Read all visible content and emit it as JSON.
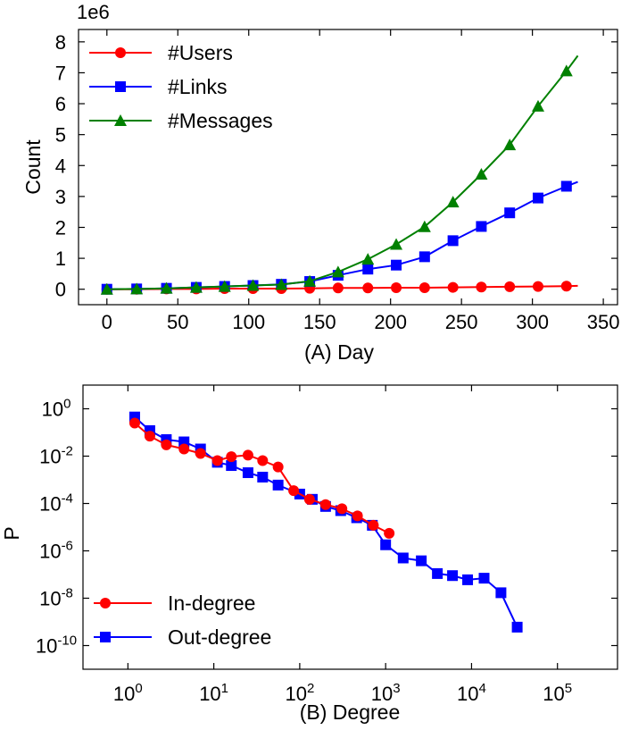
{
  "chart_data": [
    {
      "type": "line",
      "xlabel": "(A) Day",
      "ylabel": "Count",
      "y_multiplier_label": "1e6",
      "xlim": [
        -20,
        360
      ],
      "ylim": [
        -0.5,
        8.4
      ],
      "xticks": [
        0,
        50,
        100,
        150,
        200,
        250,
        300,
        350
      ],
      "yticks": [
        0,
        1,
        2,
        3,
        4,
        5,
        6,
        7,
        8
      ],
      "legend_position": "top-left",
      "grid": false,
      "series": [
        {
          "name": "#Users",
          "color": "#ff0000",
          "marker": "circle",
          "x": [
            0,
            21,
            42,
            63,
            83,
            103,
            123,
            143,
            163,
            184,
            204,
            224,
            244,
            264,
            284,
            304,
            324,
            332
          ],
          "y": [
            0,
            0,
            0.01,
            0.01,
            0.02,
            0.02,
            0.02,
            0.03,
            0.04,
            0.04,
            0.05,
            0.05,
            0.06,
            0.07,
            0.08,
            0.09,
            0.1,
            0.11
          ],
          "marker_count": 17
        },
        {
          "name": "#Links",
          "color": "#0000ff",
          "marker": "square",
          "x": [
            0,
            21,
            42,
            63,
            83,
            103,
            123,
            143,
            163,
            184,
            204,
            224,
            244,
            264,
            284,
            304,
            324,
            332
          ],
          "y": [
            0,
            0.01,
            0.03,
            0.06,
            0.09,
            0.12,
            0.16,
            0.25,
            0.45,
            0.65,
            0.78,
            1.05,
            1.57,
            2.03,
            2.47,
            2.95,
            3.33,
            3.47
          ],
          "marker_count": 17
        },
        {
          "name": "#Messages",
          "color": "#008000",
          "marker": "triangle",
          "x": [
            0,
            21,
            42,
            63,
            83,
            103,
            123,
            143,
            163,
            184,
            204,
            224,
            244,
            264,
            284,
            304,
            324,
            332
          ],
          "y": [
            0,
            0.01,
            0.03,
            0.06,
            0.09,
            0.12,
            0.15,
            0.26,
            0.56,
            0.97,
            1.45,
            2.02,
            2.82,
            3.72,
            4.67,
            5.92,
            7.06,
            7.55
          ],
          "marker_count": 17
        }
      ]
    },
    {
      "type": "line",
      "xlabel": "(B) Degree",
      "ylabel": "P",
      "xscale": "log",
      "yscale": "log",
      "xlim": [
        0.3,
        500000
      ],
      "ylim": [
        1e-11,
        10
      ],
      "xticks": [
        1,
        10,
        100,
        1000,
        10000,
        100000
      ],
      "yticks": [
        1e-10,
        1e-08,
        1e-06,
        0.0001,
        0.01,
        1
      ],
      "xtick_labels": [
        [
          "10",
          "0"
        ],
        [
          "10",
          "1"
        ],
        [
          "10",
          "2"
        ],
        [
          "10",
          "3"
        ],
        [
          "10",
          "4"
        ],
        [
          "10",
          "5"
        ]
      ],
      "ytick_labels": [
        [
          "10",
          "-10"
        ],
        [
          "10",
          "-8"
        ],
        [
          "10",
          "-6"
        ],
        [
          "10",
          "-4"
        ],
        [
          "10",
          "-2"
        ],
        [
          "10",
          "0"
        ]
      ],
      "legend_position": "bottom-left",
      "grid": false,
      "series": [
        {
          "name": "In-degree",
          "color": "#ff0000",
          "marker": "circle",
          "x": [
            1.2,
            1.8,
            2.8,
            4.5,
            7,
            11,
            16,
            25,
            37,
            56,
            85,
            130,
            200,
            310,
            470,
            720,
            1100
          ],
          "y": [
            0.25,
            0.07,
            0.03,
            0.02,
            0.013,
            0.0065,
            0.0095,
            0.011,
            0.0065,
            0.0035,
            0.00035,
            0.00015,
            9e-05,
            6e-05,
            3e-05,
            1.2e-05,
            5.5e-06
          ]
        },
        {
          "name": "Out-degree",
          "color": "#0000ff",
          "marker": "square",
          "x": [
            1.2,
            1.8,
            2.8,
            4.5,
            7,
            11,
            16,
            25,
            37,
            56,
            100,
            140,
            200,
            300,
            460,
            700,
            1000,
            1600,
            2600,
            4000,
            6000,
            9000,
            14000,
            22000,
            34000
          ],
          "y": [
            0.45,
            0.12,
            0.05,
            0.04,
            0.02,
            0.0055,
            0.004,
            0.002,
            0.0013,
            0.0006,
            0.00025,
            0.00015,
            7.5e-05,
            5e-05,
            2.5e-05,
            1.2e-05,
            1.8e-06,
            5e-07,
            3.8e-07,
            1.1e-07,
            9e-08,
            6e-08,
            7e-08,
            1.7e-08,
            6e-10
          ]
        }
      ]
    }
  ]
}
